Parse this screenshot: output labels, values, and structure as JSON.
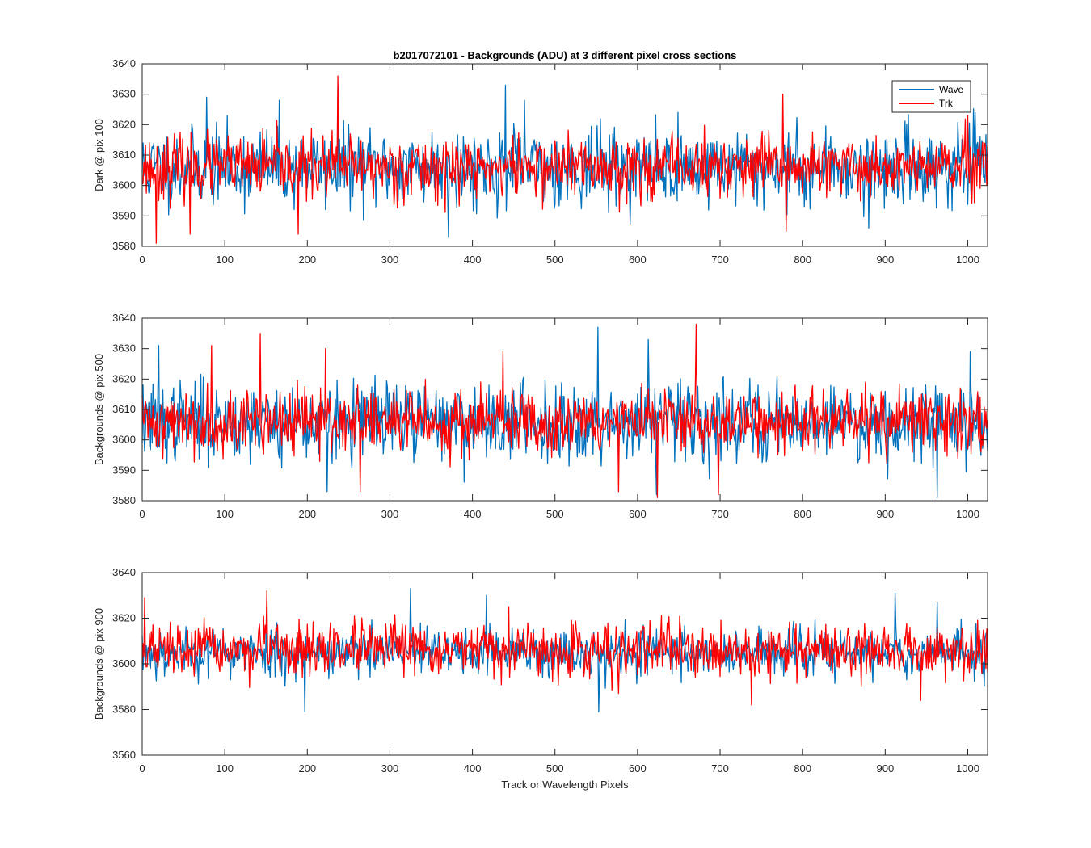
{
  "figure": {
    "title": "b2017072101 - Backgrounds (ADU) at 3 different pixel cross sections",
    "xlabel": "Track or Wavelength Pixels"
  },
  "legend": {
    "entries": [
      {
        "name": "Wave",
        "color": "#0072BD"
      },
      {
        "name": "Trk",
        "color": "#FF0000"
      }
    ],
    "placement": "top-right"
  },
  "chart_data": [
    {
      "type": "line",
      "ylabel": "Dark @ pix 100",
      "xlim": [
        0,
        1024
      ],
      "ylim": [
        3580,
        3640
      ],
      "xticks": [
        0,
        100,
        200,
        300,
        400,
        500,
        600,
        700,
        800,
        900,
        1000
      ],
      "yticks": [
        3580,
        3590,
        3600,
        3610,
        3620,
        3630,
        3640
      ],
      "grid": false,
      "series": [
        {
          "name": "Wave",
          "color": "#0072BD",
          "mean": 3606,
          "std": 6.2,
          "seed": 11,
          "spikes": [
            [
              78,
              3629
            ],
            [
              166,
              3628
            ],
            [
              237,
              3633
            ],
            [
              371,
              3583
            ],
            [
              440,
              3633
            ],
            [
              463,
              3628
            ],
            [
              880,
              3586
            ],
            [
              1009,
              3624
            ]
          ]
        },
        {
          "name": "Trk",
          "color": "#FF0000",
          "mean": 3606,
          "std": 5.0,
          "seed": 23,
          "spikes": [
            [
              17,
              3581
            ],
            [
              58,
              3584
            ],
            [
              189,
              3584
            ],
            [
              237,
              3636
            ],
            [
              776,
              3630
            ],
            [
              780,
              3585
            ],
            [
              1000,
              3623
            ]
          ]
        }
      ]
    },
    {
      "type": "line",
      "ylabel": "Backgrounds @ pix 500",
      "xlim": [
        0,
        1024
      ],
      "ylim": [
        3580,
        3640
      ],
      "xticks": [
        0,
        100,
        200,
        300,
        400,
        500,
        600,
        700,
        800,
        900,
        1000
      ],
      "yticks": [
        3580,
        3590,
        3600,
        3610,
        3620,
        3630,
        3640
      ],
      "grid": false,
      "series": [
        {
          "name": "Wave",
          "color": "#0072BD",
          "mean": 3606,
          "std": 6.4,
          "seed": 37,
          "spikes": [
            [
              20,
              3631
            ],
            [
              224,
              3583
            ],
            [
              552,
              3637
            ],
            [
              613,
              3633
            ],
            [
              623,
              3582
            ],
            [
              963,
              3581
            ],
            [
              1003,
              3629
            ]
          ]
        },
        {
          "name": "Trk",
          "color": "#FF0000",
          "mean": 3606,
          "std": 5.2,
          "seed": 41,
          "spikes": [
            [
              84,
              3631
            ],
            [
              143,
              3635
            ],
            [
              222,
              3630
            ],
            [
              264,
              3583
            ],
            [
              437,
              3629
            ],
            [
              577,
              3583
            ],
            [
              624,
              3581
            ],
            [
              671,
              3638
            ],
            [
              698,
              3582
            ]
          ]
        }
      ]
    },
    {
      "type": "line",
      "ylabel": "Backgrounds @ pix 900",
      "xlim": [
        0,
        1024
      ],
      "ylim": [
        3560,
        3640
      ],
      "xticks": [
        0,
        100,
        200,
        300,
        400,
        500,
        600,
        700,
        800,
        900,
        1000
      ],
      "yticks": [
        3560,
        3580,
        3600,
        3620,
        3640
      ],
      "grid": false,
      "series": [
        {
          "name": "Wave",
          "color": "#0072BD",
          "mean": 3605,
          "std": 5.2,
          "seed": 53,
          "spikes": [
            [
              197,
              3579
            ],
            [
              325,
              3633
            ],
            [
              417,
              3630
            ],
            [
              553,
              3579
            ],
            [
              912,
              3631
            ],
            [
              963,
              3627
            ]
          ]
        },
        {
          "name": "Trk",
          "color": "#FF0000",
          "mean": 3606,
          "std": 5.6,
          "seed": 67,
          "spikes": [
            [
              3,
              3629
            ],
            [
              151,
              3632
            ],
            [
              738,
              3582
            ],
            [
              943,
              3584
            ]
          ]
        }
      ]
    }
  ]
}
